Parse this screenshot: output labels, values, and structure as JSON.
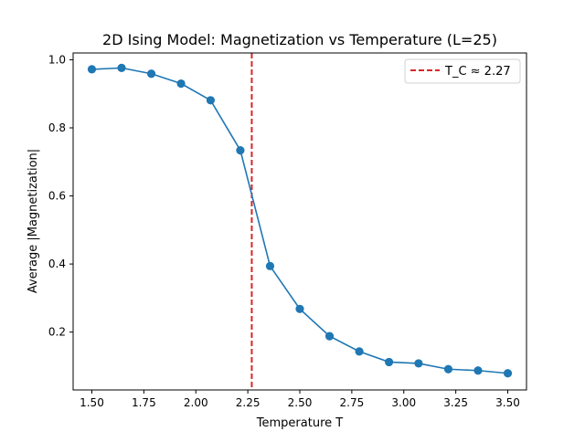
{
  "chart_data": {
    "type": "line",
    "title": "2D Ising Model: Magnetization vs Temperature (L=25)",
    "xlabel": "Temperature T",
    "ylabel": "Average |Magnetization|",
    "xlim": [
      1.41,
      3.59
    ],
    "ylim": [
      0.03,
      1.02
    ],
    "grid": false,
    "legend_position": "top-right",
    "x_ticks": [
      1.5,
      1.75,
      2.0,
      2.25,
      2.5,
      2.75,
      3.0,
      3.25,
      3.5
    ],
    "x_tick_labels": [
      "1.50",
      "1.75",
      "2.00",
      "2.25",
      "2.50",
      "2.75",
      "3.00",
      "3.25",
      "3.50"
    ],
    "y_ticks": [
      0.2,
      0.4,
      0.6,
      0.8,
      1.0
    ],
    "y_tick_labels": [
      "0.2",
      "0.4",
      "0.6",
      "0.8",
      "1.0"
    ],
    "series": [
      {
        "color": "#1f77b4",
        "marker": "circle",
        "x": [
          1.5,
          1.643,
          1.786,
          1.929,
          2.071,
          2.214,
          2.357,
          2.5,
          2.643,
          2.786,
          2.929,
          3.071,
          3.214,
          3.357,
          3.5
        ],
        "y": [
          0.972,
          0.976,
          0.959,
          0.93,
          0.881,
          0.734,
          0.394,
          0.268,
          0.188,
          0.143,
          0.112,
          0.108,
          0.091,
          0.087,
          0.079
        ]
      }
    ],
    "reference_lines": [
      {
        "orientation": "vertical",
        "x": 2.269,
        "label": "T_C ≈ 2.27",
        "color": "#d62728",
        "style": "dashed"
      }
    ]
  }
}
